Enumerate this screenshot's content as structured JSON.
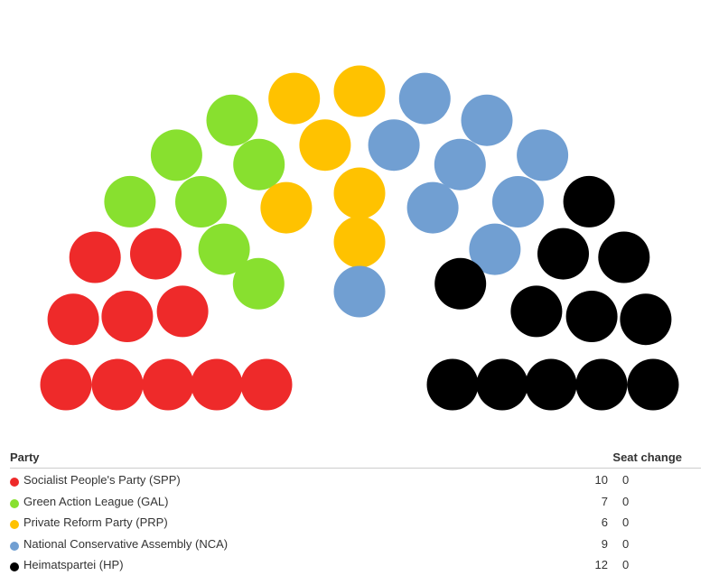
{
  "chart_data": {
    "type": "parliament",
    "columns": {
      "party": "Party",
      "seats": "",
      "seat_change": "Seat change"
    },
    "series": [
      {
        "name": "Socialist People's Party (SPP)",
        "seats": 10,
        "seat_change": 0,
        "color": "#ee2a2a"
      },
      {
        "name": "Green Action League (GAL)",
        "seats": 7,
        "seat_change": 0,
        "color": "#88e02f"
      },
      {
        "name": "Private Reform Party (PRP)",
        "seats": 6,
        "seat_change": 0,
        "color": "#ffc200"
      },
      {
        "name": "National Conservative Assembly (NCA)",
        "seats": 9,
        "seat_change": 0,
        "color": "#719fd2"
      },
      {
        "name": "Heimatspartei (HP)",
        "seats": 12,
        "seat_change": 0,
        "color": "#000000"
      }
    ]
  }
}
